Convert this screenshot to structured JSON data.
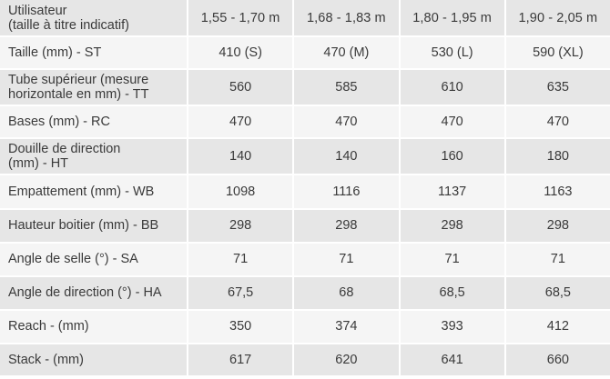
{
  "table": {
    "header": {
      "label_line1": "Utilisateur",
      "label_line2": "(taille à titre indicatif)",
      "columns": [
        "1,55 - 1,70 m",
        "1,68 - 1,83 m",
        "1,80 - 1,95 m",
        "1,90 - 2,05 m"
      ]
    },
    "rows": [
      {
        "label_line1": "Taille (mm) - ST",
        "label_line2": "",
        "values": [
          "410 (S)",
          "470 (M)",
          "530 (L)",
          "590 (XL)"
        ]
      },
      {
        "label_line1": "Tube supérieur (mesure",
        "label_line2": "horizontale en mm) - TT",
        "values": [
          "560",
          "585",
          "610",
          "635"
        ]
      },
      {
        "label_line1": "Bases (mm) - RC",
        "label_line2": "",
        "values": [
          "470",
          "470",
          "470",
          "470"
        ]
      },
      {
        "label_line1": "Douille de direction",
        "label_line2": "(mm) - HT",
        "values": [
          "140",
          "140",
          "160",
          "180"
        ]
      },
      {
        "label_line1": "Empattement (mm) - WB",
        "label_line2": "",
        "values": [
          "1098",
          "1116",
          "1137",
          "1163"
        ]
      },
      {
        "label_line1": "Hauteur boitier (mm) - BB",
        "label_line2": "",
        "values": [
          "298",
          "298",
          "298",
          "298"
        ]
      },
      {
        "label_line1": "Angle de selle (°) - SA",
        "label_line2": "",
        "values": [
          "71",
          "71",
          "71",
          "71"
        ]
      },
      {
        "label_line1": "Angle de direction (°) - HA",
        "label_line2": "",
        "values": [
          "67,5",
          "68",
          "68,5",
          "68,5"
        ]
      },
      {
        "label_line1": "Reach - (mm)",
        "label_line2": "",
        "values": [
          "350",
          "374",
          "393",
          "412"
        ]
      },
      {
        "label_line1": "Stack - (mm)",
        "label_line2": "",
        "values": [
          "617",
          "620",
          "641",
          "660"
        ]
      }
    ]
  },
  "colors": {
    "row_dark": "#e6e6e6",
    "row_light": "#f5f5f5",
    "text": "#3a3a3a",
    "separator": "#ffffff"
  }
}
